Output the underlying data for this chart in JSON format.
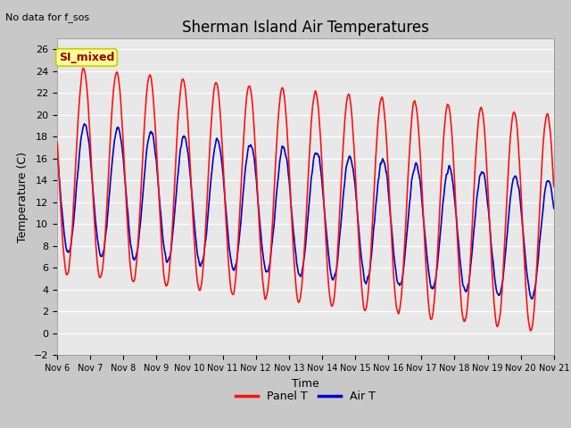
{
  "title": "Sherman Island Air Temperatures",
  "subtitle": "No data for f_sos",
  "legend_label": "SI_mixed",
  "xlabel": "Time",
  "ylabel": "Temperature (C)",
  "ylim": [
    -2,
    27
  ],
  "yticks": [
    -2,
    0,
    2,
    4,
    6,
    8,
    10,
    12,
    14,
    16,
    18,
    20,
    22,
    24,
    26
  ],
  "xlim_days": [
    6,
    21
  ],
  "xtick_days": [
    6,
    7,
    8,
    9,
    10,
    11,
    12,
    13,
    14,
    15,
    16,
    17,
    18,
    19,
    20,
    21
  ],
  "panel_color": "#FF1111",
  "air_color": "#0000CC",
  "fig_bg": "#C8C8C8",
  "plot_bg": "#E8E8E8",
  "legend_box_facecolor": "#FFFF99",
  "legend_box_edgecolor": "#CCCC00",
  "legend_text_color": "#990000",
  "grid_color": "#FFFFFF",
  "line_width": 1.2,
  "figsize": [
    6.4,
    4.8
  ],
  "dpi": 100,
  "title_fontsize": 12,
  "axis_label_fontsize": 9,
  "tick_fontsize": 8
}
